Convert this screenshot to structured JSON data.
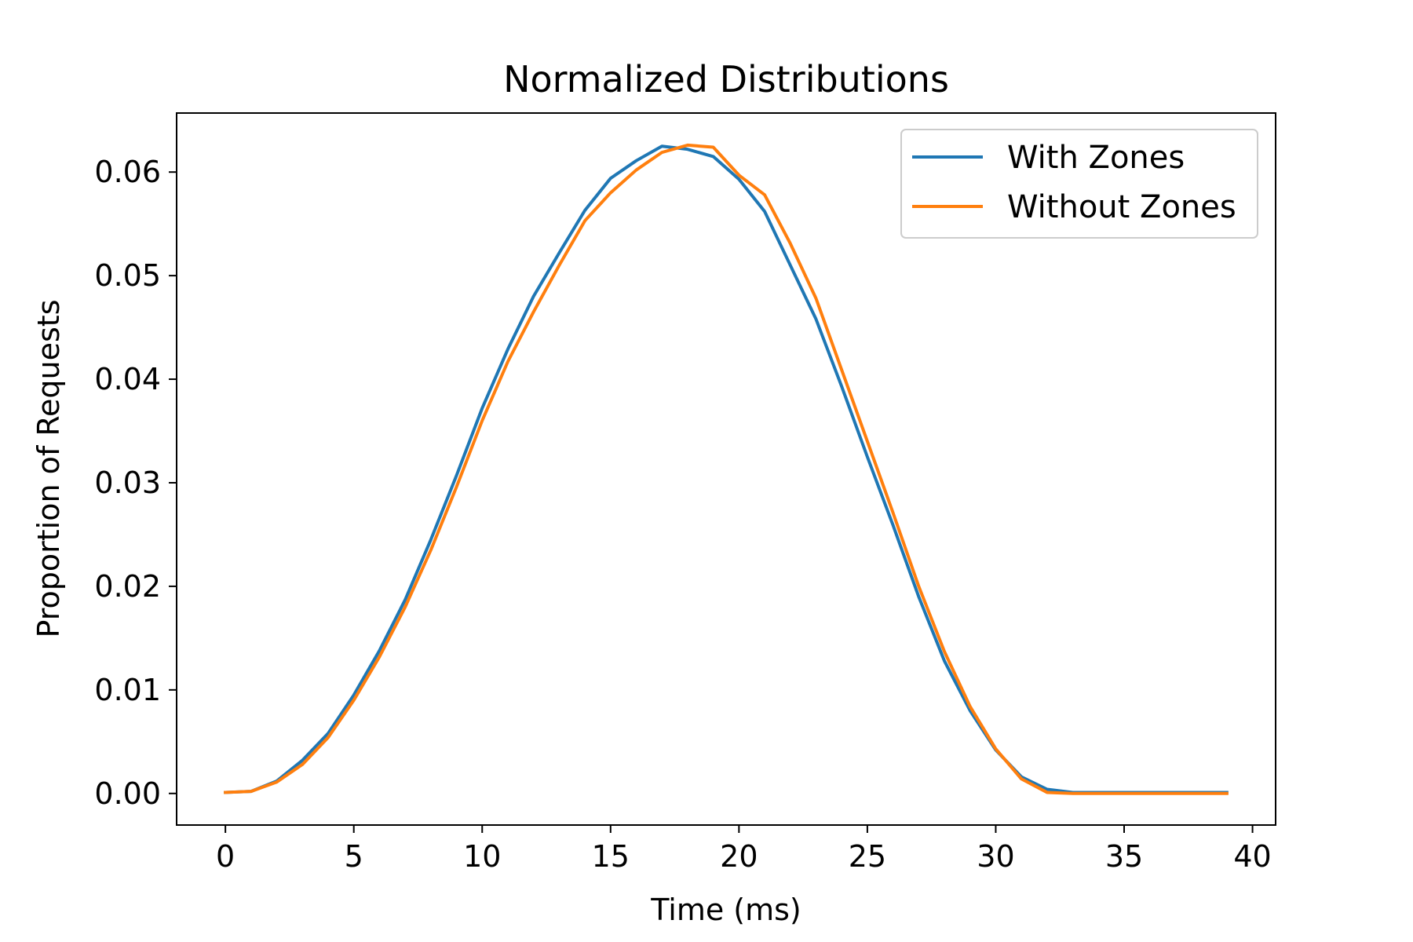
{
  "chart_data": {
    "type": "line",
    "title": "Normalized Distributions",
    "xlabel": "Time (ms)",
    "ylabel": "Proportion of Requests",
    "xlim": [
      -1.9,
      40.9
    ],
    "ylim": [
      -0.00305,
      0.0657
    ],
    "xticks": [
      0,
      5,
      10,
      15,
      20,
      25,
      30,
      35,
      40
    ],
    "xtick_labels": [
      "0",
      "5",
      "10",
      "15",
      "20",
      "25",
      "30",
      "35",
      "40"
    ],
    "yticks": [
      0.0,
      0.01,
      0.02,
      0.03,
      0.04,
      0.05,
      0.06
    ],
    "ytick_labels": [
      "0.00",
      "0.01",
      "0.02",
      "0.03",
      "0.04",
      "0.05",
      "0.06"
    ],
    "grid": false,
    "legend_position": "top-right",
    "x": [
      0,
      1,
      2,
      3,
      4,
      5,
      6,
      7,
      8,
      9,
      10,
      11,
      12,
      13,
      14,
      15,
      16,
      17,
      18,
      19,
      20,
      21,
      22,
      23,
      24,
      25,
      26,
      27,
      28,
      29,
      30,
      31,
      32,
      33,
      34,
      35,
      36,
      37,
      38,
      39
    ],
    "series": [
      {
        "name": "With Zones",
        "color": "#1f77b4",
        "values": [
          0.0001,
          0.0002,
          0.0012,
          0.0032,
          0.0058,
          0.0095,
          0.0138,
          0.0187,
          0.0245,
          0.0307,
          0.0372,
          0.0429,
          0.048,
          0.0522,
          0.0563,
          0.0594,
          0.0611,
          0.0625,
          0.0622,
          0.0615,
          0.0593,
          0.0562,
          0.051,
          0.0458,
          0.0393,
          0.0325,
          0.0259,
          0.019,
          0.0128,
          0.008,
          0.0042,
          0.0016,
          0.0004,
          0.0001,
          0.0001,
          0.0001,
          0.0001,
          0.0001,
          0.0001,
          0.0001
        ]
      },
      {
        "name": "Without Zones",
        "color": "#ff7f0e",
        "values": [
          0.0001,
          0.0002,
          0.0011,
          0.0028,
          0.0054,
          0.009,
          0.0132,
          0.018,
          0.0235,
          0.0296,
          0.036,
          0.0417,
          0.0465,
          0.051,
          0.0553,
          0.058,
          0.0602,
          0.0619,
          0.0626,
          0.0624,
          0.0597,
          0.0578,
          0.0531,
          0.0478,
          0.0409,
          0.034,
          0.0271,
          0.02,
          0.0137,
          0.0084,
          0.0043,
          0.0014,
          0.0001,
          0.0,
          0.0,
          0.0,
          0.0,
          0.0,
          0.0,
          0.0
        ]
      }
    ]
  }
}
